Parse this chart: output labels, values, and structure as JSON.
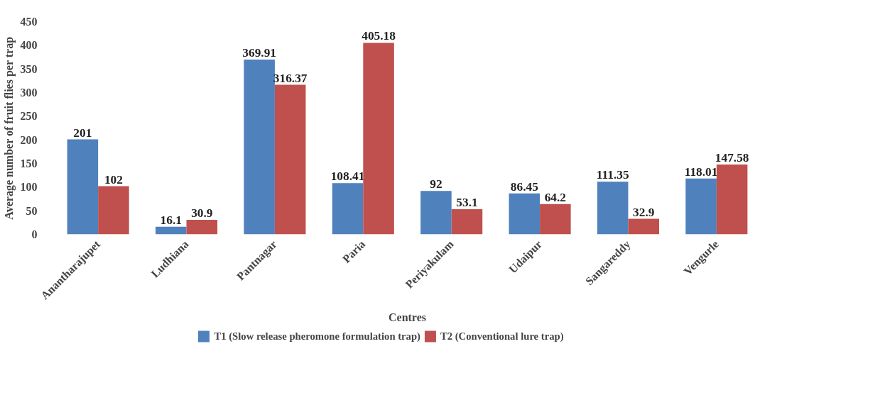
{
  "chart_data": {
    "type": "bar",
    "xlabel": "Centres",
    "ylabel": "Average number of fruit flies per trap",
    "categories": [
      "Anantharajupet",
      "Ludhiana",
      "Pantnagar",
      "Paria",
      "Periyakulam",
      "Udaipur",
      "Sangareddy",
      "Vengurle"
    ],
    "series": [
      {
        "name": "T1 (Slow release pheromone formulation trap)",
        "color": "#4f81bd",
        "values": [
          201,
          16.1,
          369.91,
          108.41,
          92,
          86.45,
          111.35,
          118.01
        ]
      },
      {
        "name": "T2 (Conventional lure trap)",
        "color": "#c0504d",
        "values": [
          102,
          30.9,
          316.37,
          405.18,
          53.1,
          64.2,
          32.9,
          147.58
        ]
      }
    ],
    "ylim": [
      0,
      450
    ],
    "yticks": [
      0,
      50,
      100,
      150,
      200,
      250,
      300,
      350,
      400,
      450
    ],
    "data_labels": true,
    "legend": "bottom",
    "grid": false
  }
}
